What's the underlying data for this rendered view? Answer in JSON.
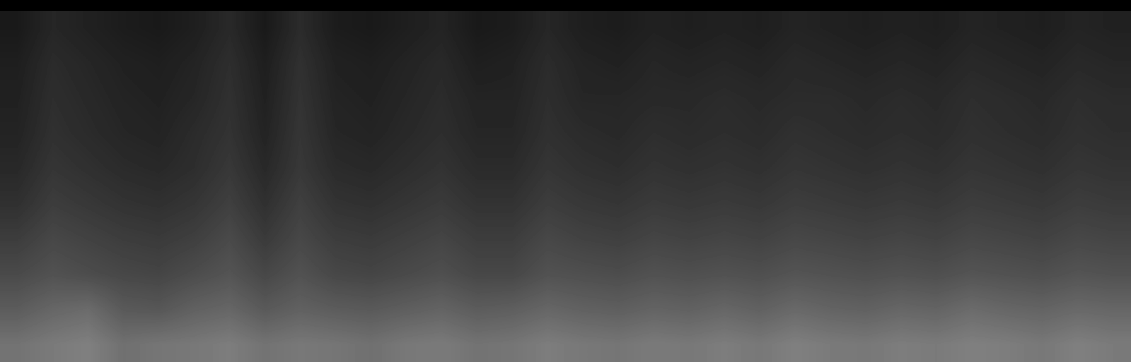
{
  "chart_data": {
    "type": "heatmap",
    "tick_labels": false,
    "color": "gray",
    "color_range": [
      0,
      1
    ],
    "cells": [
      [
        0.1,
        0.15,
        0.13,
        0.11,
        0.1,
        0.12,
        0.16,
        0.1,
        0.17,
        0.11,
        0.1,
        0.12,
        0.14,
        0.1,
        0.11,
        0.15,
        0.12,
        0.11,
        0.13,
        0.12,
        0.13,
        0.12,
        0.14,
        0.13,
        0.12,
        0.13,
        0.12,
        0.14,
        0.13,
        0.12,
        0.14,
        0.13
      ],
      [
        0.12,
        0.17,
        0.15,
        0.13,
        0.12,
        0.14,
        0.18,
        0.12,
        0.19,
        0.13,
        0.12,
        0.14,
        0.16,
        0.12,
        0.13,
        0.17,
        0.14,
        0.13,
        0.15,
        0.14,
        0.15,
        0.14,
        0.16,
        0.15,
        0.14,
        0.15,
        0.14,
        0.16,
        0.15,
        0.14,
        0.16,
        0.15
      ],
      [
        0.13,
        0.18,
        0.16,
        0.14,
        0.13,
        0.15,
        0.19,
        0.13,
        0.2,
        0.14,
        0.13,
        0.15,
        0.17,
        0.14,
        0.14,
        0.18,
        0.15,
        0.15,
        0.16,
        0.16,
        0.17,
        0.16,
        0.17,
        0.17,
        0.16,
        0.17,
        0.16,
        0.18,
        0.17,
        0.16,
        0.18,
        0.17
      ],
      [
        0.14,
        0.19,
        0.17,
        0.15,
        0.14,
        0.17,
        0.2,
        0.14,
        0.21,
        0.15,
        0.14,
        0.16,
        0.18,
        0.15,
        0.15,
        0.19,
        0.17,
        0.16,
        0.18,
        0.17,
        0.18,
        0.17,
        0.19,
        0.18,
        0.17,
        0.18,
        0.17,
        0.19,
        0.18,
        0.17,
        0.19,
        0.18
      ],
      [
        0.16,
        0.21,
        0.19,
        0.17,
        0.16,
        0.18,
        0.22,
        0.16,
        0.22,
        0.17,
        0.16,
        0.18,
        0.2,
        0.17,
        0.17,
        0.21,
        0.19,
        0.18,
        0.2,
        0.19,
        0.2,
        0.19,
        0.21,
        0.2,
        0.19,
        0.2,
        0.19,
        0.21,
        0.2,
        0.19,
        0.21,
        0.2
      ],
      [
        0.19,
        0.24,
        0.22,
        0.2,
        0.19,
        0.21,
        0.25,
        0.19,
        0.25,
        0.2,
        0.19,
        0.21,
        0.23,
        0.2,
        0.2,
        0.24,
        0.22,
        0.21,
        0.23,
        0.22,
        0.23,
        0.22,
        0.24,
        0.23,
        0.22,
        0.23,
        0.22,
        0.24,
        0.23,
        0.22,
        0.24,
        0.23
      ],
      [
        0.24,
        0.28,
        0.26,
        0.24,
        0.23,
        0.25,
        0.29,
        0.23,
        0.28,
        0.24,
        0.23,
        0.25,
        0.27,
        0.24,
        0.24,
        0.28,
        0.26,
        0.25,
        0.27,
        0.26,
        0.27,
        0.26,
        0.28,
        0.27,
        0.26,
        0.27,
        0.26,
        0.28,
        0.27,
        0.26,
        0.28,
        0.27
      ],
      [
        0.29,
        0.32,
        0.3,
        0.28,
        0.27,
        0.3,
        0.33,
        0.28,
        0.32,
        0.28,
        0.27,
        0.29,
        0.31,
        0.28,
        0.28,
        0.32,
        0.31,
        0.3,
        0.32,
        0.31,
        0.32,
        0.31,
        0.33,
        0.32,
        0.31,
        0.32,
        0.31,
        0.33,
        0.32,
        0.31,
        0.33,
        0.32
      ],
      [
        0.36,
        0.4,
        0.42,
        0.35,
        0.34,
        0.38,
        0.4,
        0.35,
        0.38,
        0.36,
        0.35,
        0.37,
        0.39,
        0.36,
        0.37,
        0.4,
        0.38,
        0.37,
        0.39,
        0.38,
        0.4,
        0.38,
        0.41,
        0.39,
        0.38,
        0.4,
        0.39,
        0.42,
        0.4,
        0.39,
        0.41,
        0.4
      ],
      [
        0.45,
        0.48,
        0.5,
        0.44,
        0.46,
        0.47,
        0.49,
        0.45,
        0.47,
        0.46,
        0.44,
        0.47,
        0.48,
        0.45,
        0.46,
        0.49,
        0.47,
        0.46,
        0.48,
        0.47,
        0.49,
        0.47,
        0.5,
        0.48,
        0.47,
        0.49,
        0.48,
        0.5,
        0.49,
        0.47,
        0.5,
        0.48
      ]
    ]
  }
}
